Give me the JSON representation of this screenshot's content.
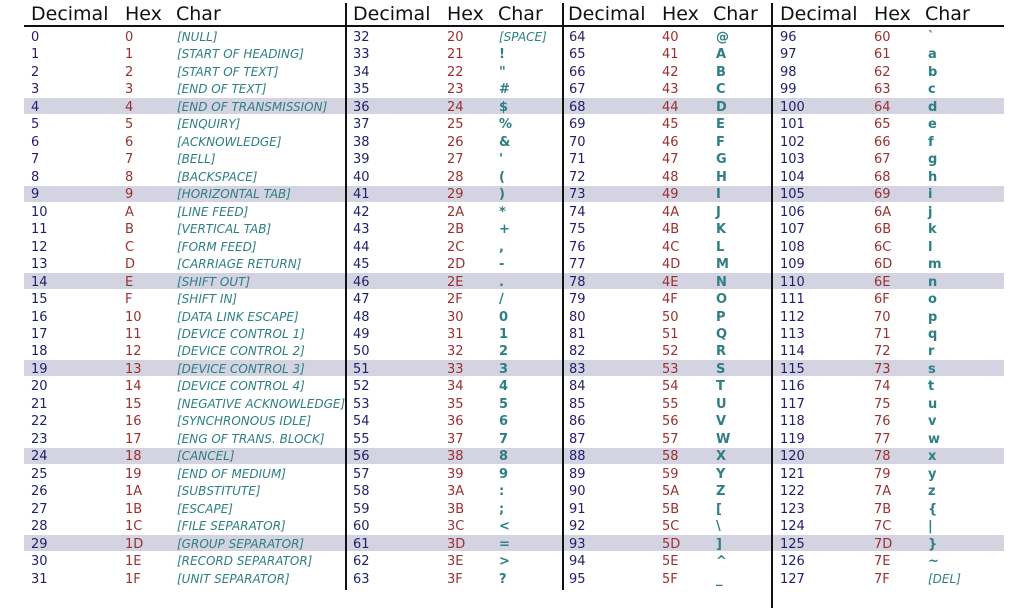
{
  "table": {
    "headers": [
      "Decimal",
      "Hex",
      "Char"
    ],
    "columns": [
      {
        "rows": [
          {
            "dec": "0",
            "hex": "0",
            "char": "[NULL]"
          },
          {
            "dec": "1",
            "hex": "1",
            "char": "[START OF HEADING]"
          },
          {
            "dec": "2",
            "hex": "2",
            "char": "[START OF TEXT]"
          },
          {
            "dec": "3",
            "hex": "3",
            "char": "[END OF TEXT]"
          },
          {
            "dec": "4",
            "hex": "4",
            "char": "[END OF TRANSMISSION]"
          },
          {
            "dec": "5",
            "hex": "5",
            "char": "[ENQUIRY]"
          },
          {
            "dec": "6",
            "hex": "6",
            "char": "[ACKNOWLEDGE]"
          },
          {
            "dec": "7",
            "hex": "7",
            "char": "[BELL]"
          },
          {
            "dec": "8",
            "hex": "8",
            "char": "[BACKSPACE]"
          },
          {
            "dec": "9",
            "hex": "9",
            "char": "[HORIZONTAL TAB]"
          },
          {
            "dec": "10",
            "hex": "A",
            "char": "[LINE FEED]"
          },
          {
            "dec": "11",
            "hex": "B",
            "char": "[VERTICAL TAB]"
          },
          {
            "dec": "12",
            "hex": "C",
            "char": "[FORM FEED]"
          },
          {
            "dec": "13",
            "hex": "D",
            "char": "[CARRIAGE RETURN]"
          },
          {
            "dec": "14",
            "hex": "E",
            "char": "[SHIFT OUT]"
          },
          {
            "dec": "15",
            "hex": "F",
            "char": "[SHIFT IN]"
          },
          {
            "dec": "16",
            "hex": "10",
            "char": "[DATA LINK ESCAPE]"
          },
          {
            "dec": "17",
            "hex": "11",
            "char": "[DEVICE CONTROL 1]"
          },
          {
            "dec": "18",
            "hex": "12",
            "char": "[DEVICE CONTROL 2]"
          },
          {
            "dec": "19",
            "hex": "13",
            "char": "[DEVICE CONTROL 3]"
          },
          {
            "dec": "20",
            "hex": "14",
            "char": "[DEVICE CONTROL 4]"
          },
          {
            "dec": "21",
            "hex": "15",
            "char": "[NEGATIVE ACKNOWLEDGE]"
          },
          {
            "dec": "22",
            "hex": "16",
            "char": "[SYNCHRONOUS IDLE]"
          },
          {
            "dec": "23",
            "hex": "17",
            "char": "[ENG OF TRANS. BLOCK]"
          },
          {
            "dec": "24",
            "hex": "18",
            "char": "[CANCEL]"
          },
          {
            "dec": "25",
            "hex": "19",
            "char": "[END OF MEDIUM]"
          },
          {
            "dec": "26",
            "hex": "1A",
            "char": "[SUBSTITUTE]"
          },
          {
            "dec": "27",
            "hex": "1B",
            "char": "[ESCAPE]"
          },
          {
            "dec": "28",
            "hex": "1C",
            "char": "[FILE SEPARATOR]"
          },
          {
            "dec": "29",
            "hex": "1D",
            "char": "[GROUP SEPARATOR]"
          },
          {
            "dec": "30",
            "hex": "1E",
            "char": "[RECORD SEPARATOR]"
          },
          {
            "dec": "31",
            "hex": "1F",
            "char": "[UNIT SEPARATOR]"
          }
        ]
      },
      {
        "rows": [
          {
            "dec": "32",
            "hex": "20",
            "char": "[SPACE]"
          },
          {
            "dec": "33",
            "hex": "21",
            "char": "!"
          },
          {
            "dec": "34",
            "hex": "22",
            "char": "\""
          },
          {
            "dec": "35",
            "hex": "23",
            "char": "#"
          },
          {
            "dec": "36",
            "hex": "24",
            "char": "$"
          },
          {
            "dec": "37",
            "hex": "25",
            "char": "%"
          },
          {
            "dec": "38",
            "hex": "26",
            "char": "&"
          },
          {
            "dec": "39",
            "hex": "27",
            "char": "'"
          },
          {
            "dec": "40",
            "hex": "28",
            "char": "("
          },
          {
            "dec": "41",
            "hex": "29",
            "char": ")"
          },
          {
            "dec": "42",
            "hex": "2A",
            "char": "*"
          },
          {
            "dec": "43",
            "hex": "2B",
            "char": "+"
          },
          {
            "dec": "44",
            "hex": "2C",
            "char": ","
          },
          {
            "dec": "45",
            "hex": "2D",
            "char": "-"
          },
          {
            "dec": "46",
            "hex": "2E",
            "char": "."
          },
          {
            "dec": "47",
            "hex": "2F",
            "char": "/"
          },
          {
            "dec": "48",
            "hex": "30",
            "char": "0"
          },
          {
            "dec": "49",
            "hex": "31",
            "char": "1"
          },
          {
            "dec": "50",
            "hex": "32",
            "char": "2"
          },
          {
            "dec": "51",
            "hex": "33",
            "char": "3"
          },
          {
            "dec": "52",
            "hex": "34",
            "char": "4"
          },
          {
            "dec": "53",
            "hex": "35",
            "char": "5"
          },
          {
            "dec": "54",
            "hex": "36",
            "char": "6"
          },
          {
            "dec": "55",
            "hex": "37",
            "char": "7"
          },
          {
            "dec": "56",
            "hex": "38",
            "char": "8"
          },
          {
            "dec": "57",
            "hex": "39",
            "char": "9"
          },
          {
            "dec": "58",
            "hex": "3A",
            "char": ":"
          },
          {
            "dec": "59",
            "hex": "3B",
            "char": ";"
          },
          {
            "dec": "60",
            "hex": "3C",
            "char": "<"
          },
          {
            "dec": "61",
            "hex": "3D",
            "char": "="
          },
          {
            "dec": "62",
            "hex": "3E",
            "char": ">"
          },
          {
            "dec": "63",
            "hex": "3F",
            "char": "?"
          }
        ]
      },
      {
        "rows": [
          {
            "dec": "64",
            "hex": "40",
            "char": "@"
          },
          {
            "dec": "65",
            "hex": "41",
            "char": "A"
          },
          {
            "dec": "66",
            "hex": "42",
            "char": "B"
          },
          {
            "dec": "67",
            "hex": "43",
            "char": "C"
          },
          {
            "dec": "68",
            "hex": "44",
            "char": "D"
          },
          {
            "dec": "69",
            "hex": "45",
            "char": "E"
          },
          {
            "dec": "70",
            "hex": "46",
            "char": "F"
          },
          {
            "dec": "71",
            "hex": "47",
            "char": "G"
          },
          {
            "dec": "72",
            "hex": "48",
            "char": "H"
          },
          {
            "dec": "73",
            "hex": "49",
            "char": "I"
          },
          {
            "dec": "74",
            "hex": "4A",
            "char": "J"
          },
          {
            "dec": "75",
            "hex": "4B",
            "char": "K"
          },
          {
            "dec": "76",
            "hex": "4C",
            "char": "L"
          },
          {
            "dec": "77",
            "hex": "4D",
            "char": "M"
          },
          {
            "dec": "78",
            "hex": "4E",
            "char": "N"
          },
          {
            "dec": "79",
            "hex": "4F",
            "char": "O"
          },
          {
            "dec": "80",
            "hex": "50",
            "char": "P"
          },
          {
            "dec": "81",
            "hex": "51",
            "char": "Q"
          },
          {
            "dec": "82",
            "hex": "52",
            "char": "R"
          },
          {
            "dec": "83",
            "hex": "53",
            "char": "S"
          },
          {
            "dec": "84",
            "hex": "54",
            "char": "T"
          },
          {
            "dec": "85",
            "hex": "55",
            "char": "U"
          },
          {
            "dec": "86",
            "hex": "56",
            "char": "V"
          },
          {
            "dec": "87",
            "hex": "57",
            "char": "W"
          },
          {
            "dec": "88",
            "hex": "58",
            "char": "X"
          },
          {
            "dec": "89",
            "hex": "59",
            "char": "Y"
          },
          {
            "dec": "90",
            "hex": "5A",
            "char": "Z"
          },
          {
            "dec": "91",
            "hex": "5B",
            "char": "["
          },
          {
            "dec": "92",
            "hex": "5C",
            "char": "\\"
          },
          {
            "dec": "93",
            "hex": "5D",
            "char": "]"
          },
          {
            "dec": "94",
            "hex": "5E",
            "char": "^"
          },
          {
            "dec": "95",
            "hex": "5F",
            "char": "_"
          }
        ]
      },
      {
        "rows": [
          {
            "dec": "96",
            "hex": "60",
            "char": "`"
          },
          {
            "dec": "97",
            "hex": "61",
            "char": "a"
          },
          {
            "dec": "98",
            "hex": "62",
            "char": "b"
          },
          {
            "dec": "99",
            "hex": "63",
            "char": "c"
          },
          {
            "dec": "100",
            "hex": "64",
            "char": "d"
          },
          {
            "dec": "101",
            "hex": "65",
            "char": "e"
          },
          {
            "dec": "102",
            "hex": "66",
            "char": "f"
          },
          {
            "dec": "103",
            "hex": "67",
            "char": "g"
          },
          {
            "dec": "104",
            "hex": "68",
            "char": "h"
          },
          {
            "dec": "105",
            "hex": "69",
            "char": "i"
          },
          {
            "dec": "106",
            "hex": "6A",
            "char": "j"
          },
          {
            "dec": "107",
            "hex": "6B",
            "char": "k"
          },
          {
            "dec": "108",
            "hex": "6C",
            "char": "l"
          },
          {
            "dec": "109",
            "hex": "6D",
            "char": "m"
          },
          {
            "dec": "110",
            "hex": "6E",
            "char": "n"
          },
          {
            "dec": "111",
            "hex": "6F",
            "char": "o"
          },
          {
            "dec": "112",
            "hex": "70",
            "char": "p"
          },
          {
            "dec": "113",
            "hex": "71",
            "char": "q"
          },
          {
            "dec": "114",
            "hex": "72",
            "char": "r"
          },
          {
            "dec": "115",
            "hex": "73",
            "char": "s"
          },
          {
            "dec": "116",
            "hex": "74",
            "char": "t"
          },
          {
            "dec": "117",
            "hex": "75",
            "char": "u"
          },
          {
            "dec": "118",
            "hex": "76",
            "char": "v"
          },
          {
            "dec": "119",
            "hex": "77",
            "char": "w"
          },
          {
            "dec": "120",
            "hex": "78",
            "char": "x"
          },
          {
            "dec": "121",
            "hex": "79",
            "char": "y"
          },
          {
            "dec": "122",
            "hex": "7A",
            "char": "z"
          },
          {
            "dec": "123",
            "hex": "7B",
            "char": "{"
          },
          {
            "dec": "124",
            "hex": "7C",
            "char": "|"
          },
          {
            "dec": "125",
            "hex": "7D",
            "char": "}"
          },
          {
            "dec": "126",
            "hex": "7E",
            "char": "~"
          },
          {
            "dec": "127",
            "hex": "7F",
            "char": "[DEL]"
          }
        ]
      }
    ]
  },
  "colors": {
    "decimal": "#1f1f6b",
    "hex": "#9a3030",
    "char": "#2e7f82",
    "band": "#d3d3e1",
    "rule": "#111111"
  }
}
